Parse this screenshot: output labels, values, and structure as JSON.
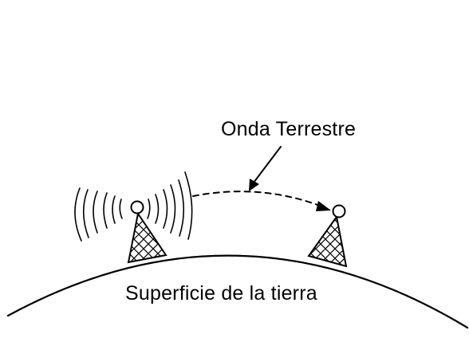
{
  "diagram": {
    "wave_label": "Onda Terrestre",
    "surface_label": "Superficie de la tierra",
    "colors": {
      "stroke": "#000000",
      "background": "#ffffff"
    },
    "icons": {
      "transmitter": "radio-tower-icon",
      "receiver": "radio-tower-icon",
      "emission": "radio-waves-icon",
      "pointer": "arrow-icon"
    }
  }
}
